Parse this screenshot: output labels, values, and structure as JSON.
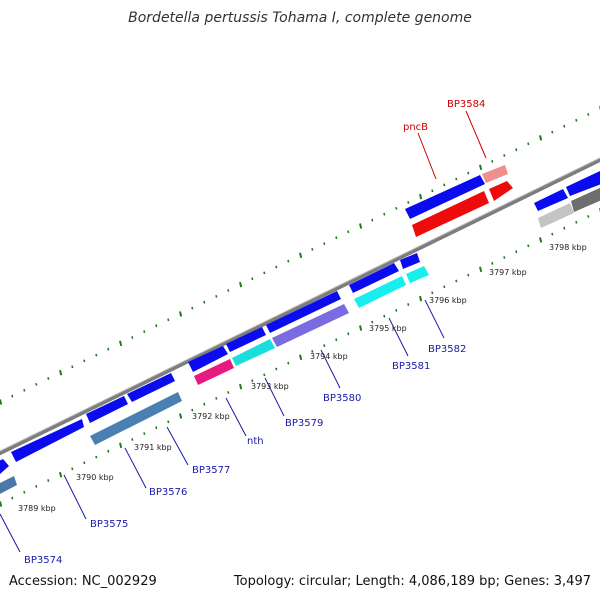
{
  "header": {
    "title": "Bordetella pertussis Tohama I, complete genome"
  },
  "footer": {
    "accession": "Accession: NC_002929",
    "summary": "Topology: circular; Length: 4,086,189 bp; Genes: 3,497"
  },
  "colors": {
    "backbone": "#7a7a7a",
    "tick_major": "#1f7a1f",
    "forward_gene": "#0a0aee",
    "label_blue": "#1a1aa8",
    "label_red": "#cc0000"
  },
  "kbp_labels": [
    "3789 kbp",
    "3790 kbp",
    "3791 kbp",
    "3792 kbp",
    "3793 kbp",
    "3794 kbp",
    "3795 kbp",
    "3796 kbp",
    "3797 kbp",
    "3798 kbp"
  ],
  "gene_labels": [
    {
      "text": "BP3574",
      "color": "blue"
    },
    {
      "text": "BP3575",
      "color": "blue"
    },
    {
      "text": "BP3576",
      "color": "blue"
    },
    {
      "text": "BP3577",
      "color": "blue"
    },
    {
      "text": "nth",
      "color": "blue"
    },
    {
      "text": "BP3579",
      "color": "blue"
    },
    {
      "text": "BP3580",
      "color": "blue"
    },
    {
      "text": "BP3581",
      "color": "blue"
    },
    {
      "text": "BP3582",
      "color": "blue"
    },
    {
      "text": "pncB",
      "color": "red"
    },
    {
      "text": "BP3584",
      "color": "red"
    }
  ]
}
